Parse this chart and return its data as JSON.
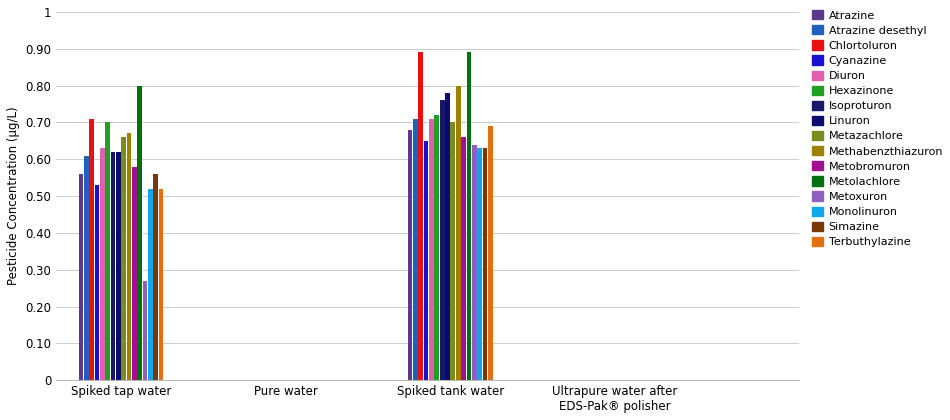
{
  "categories": [
    "Spiked tap water",
    "Pure water",
    "Spiked tank water",
    "Ultrapure water after\nEDS-Pak® polisher"
  ],
  "pesticides": [
    "Atrazine",
    "Atrazine desethyl",
    "Chlortoluron",
    "Cyanazine",
    "Diuron",
    "Hexazinone",
    "Isoproturon",
    "Linuron",
    "Metazachlore",
    "Methabenzthiazuron",
    "Metobromuron",
    "Metolachlore",
    "Metoxuron",
    "Monolinuron",
    "Simazine",
    "Terbuthylazine"
  ],
  "colors": [
    "#5b3a8e",
    "#2060c0",
    "#e81010",
    "#1a10d0",
    "#e060b0",
    "#20a020",
    "#18186a",
    "#0c0c6e",
    "#7a8c20",
    "#a08000",
    "#a01090",
    "#007010",
    "#9060c0",
    "#10a8e8",
    "#7a3808",
    "#e07010"
  ],
  "values_spiked_tap": [
    0.56,
    0.61,
    0.71,
    0.53,
    0.63,
    0.7,
    0.62,
    0.62,
    0.66,
    0.67,
    0.58,
    0.8,
    0.27,
    0.52,
    0.56,
    0.52
  ],
  "values_pure": [
    0.0,
    0.0,
    0.0,
    0.0,
    0.0,
    0.0,
    0.0,
    0.0,
    0.0,
    0.0,
    0.0,
    0.0,
    0.0,
    0.0,
    0.0,
    0.0
  ],
  "values_spiked_tank": [
    0.68,
    0.71,
    0.89,
    0.65,
    0.71,
    0.72,
    0.76,
    0.78,
    0.7,
    0.8,
    0.66,
    0.89,
    0.64,
    0.63,
    0.63,
    0.69
  ],
  "values_ultrapure": [
    0.0,
    0.0,
    0.0,
    0.0,
    0.0,
    0.0,
    0.0,
    0.0,
    0.0,
    0.0,
    0.0,
    0.0,
    0.0,
    0.0,
    0.0,
    0.0
  ],
  "ylabel": "Pesticide Concentration (μg/L)",
  "ylim": [
    0,
    1.0
  ],
  "yticks": [
    0,
    0.1,
    0.2,
    0.3,
    0.4,
    0.5,
    0.6,
    0.7,
    0.8,
    0.9,
    1
  ],
  "ytick_labels": [
    "0",
    "0.10",
    "0.20",
    "0.30",
    "0.40",
    "0.50",
    "0.60",
    "0.70",
    "0.80",
    "0.90",
    "1"
  ],
  "figsize": [
    9.5,
    4.2
  ],
  "dpi": 100,
  "bar_width": 0.038,
  "cat_centers": [
    0.38,
    1.55,
    2.72,
    3.89
  ],
  "xlim": [
    -0.08,
    5.2
  ]
}
